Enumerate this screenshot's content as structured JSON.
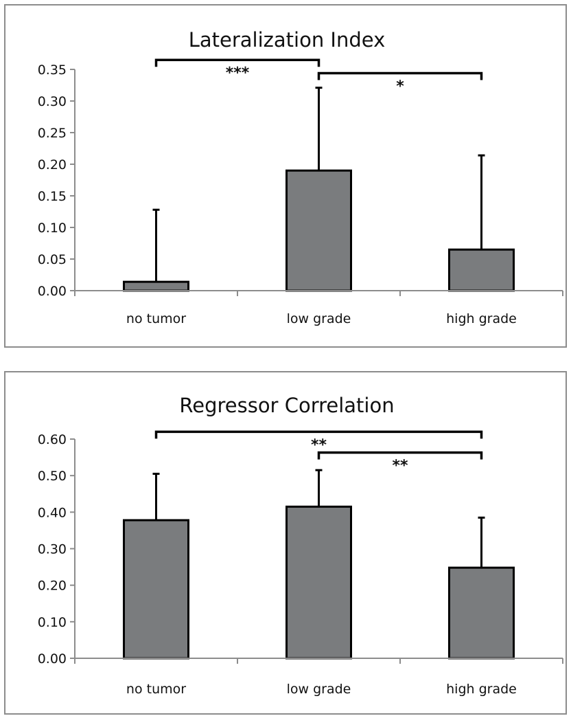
{
  "chart_data": [
    {
      "type": "bar",
      "title": "Lateralization Index",
      "categories": [
        "no tumor",
        "low grade",
        "high grade"
      ],
      "values": [
        0.014,
        0.19,
        0.065
      ],
      "errors_upper": [
        0.128,
        0.321,
        0.214
      ],
      "ylim": [
        0,
        0.35
      ],
      "yticks": [
        "0.00",
        "0.05",
        "0.10",
        "0.15",
        "0.20",
        "0.25",
        "0.30",
        "0.35"
      ],
      "bar_color": "#7a7c7e",
      "grid": false,
      "significance": [
        {
          "from": 0,
          "to": 1,
          "label": "***",
          "y": 0.365
        },
        {
          "from": 1,
          "to": 2,
          "label": "*",
          "y": 0.344
        }
      ]
    },
    {
      "type": "bar",
      "title": "Regressor Correlation",
      "categories": [
        "no tumor",
        "low grade",
        "high grade"
      ],
      "values": [
        0.378,
        0.415,
        0.248
      ],
      "errors_upper": [
        0.505,
        0.515,
        0.385
      ],
      "ylim": [
        0,
        0.6
      ],
      "yticks": [
        "0.00",
        "0.10",
        "0.20",
        "0.30",
        "0.40",
        "0.50",
        "0.60"
      ],
      "bar_color": "#7a7c7e",
      "grid": false,
      "significance": [
        {
          "from": 0,
          "to": 2,
          "label": "**",
          "y": 0.62
        },
        {
          "from": 1,
          "to": 2,
          "label": "**",
          "y": 0.563
        }
      ]
    }
  ]
}
